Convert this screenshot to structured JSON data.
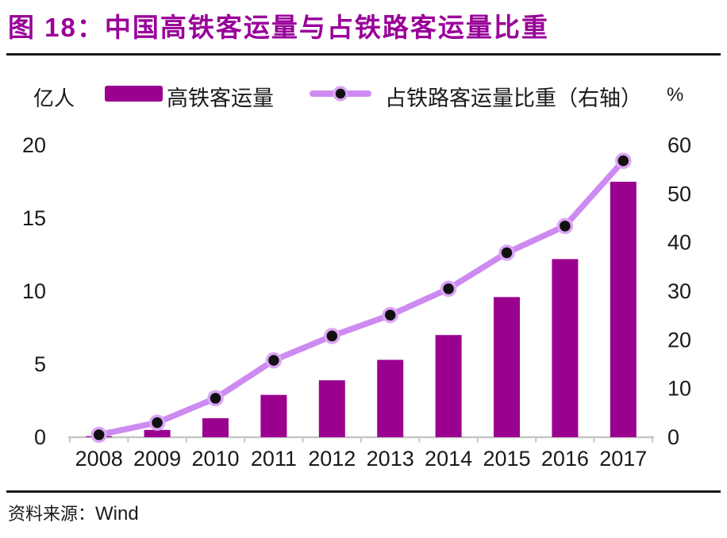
{
  "header": {
    "figure_label": "图 18：",
    "title_text": "中国高铁客运量与占铁路客运量比重"
  },
  "footer": {
    "source_prefix": "资料来源：",
    "source_value": "Wind"
  },
  "colors": {
    "title": "#990099",
    "bar": "#9a018f",
    "line": "#cd8af0",
    "marker_fill": "#111111",
    "marker_ring": "#dca5f6",
    "axis_line": "#c6c6c6",
    "text": "#1a1a1a"
  },
  "chart_data": {
    "type": "bar+line combo",
    "title": "中国高铁客运量与占铁路客运量比重",
    "grid": "off",
    "legend_position": "top",
    "categories": [
      "2008",
      "2009",
      "2010",
      "2011",
      "2012",
      "2013",
      "2014",
      "2015",
      "2016",
      "2017"
    ],
    "series": [
      {
        "name": "高铁客运量",
        "type": "bar",
        "axis": "left",
        "unit": "亿人",
        "values": [
          0.07,
          0.5,
          1.3,
          2.9,
          3.9,
          5.3,
          7.0,
          9.6,
          12.2,
          17.5
        ]
      },
      {
        "name": "占铁路客运量比重（右轴）",
        "type": "line",
        "axis": "right",
        "unit": "%",
        "values": [
          0.5,
          3.0,
          8.0,
          15.8,
          20.8,
          25.1,
          30.5,
          37.9,
          43.4,
          56.8
        ]
      }
    ],
    "left_axis": {
      "unit": "亿人",
      "min": 0,
      "max": 20,
      "ticks": [
        0,
        5,
        10,
        15,
        20
      ]
    },
    "right_axis": {
      "unit": "%",
      "min": 0,
      "max": 60,
      "ticks": [
        0,
        10,
        20,
        30,
        40,
        50,
        60
      ]
    }
  }
}
